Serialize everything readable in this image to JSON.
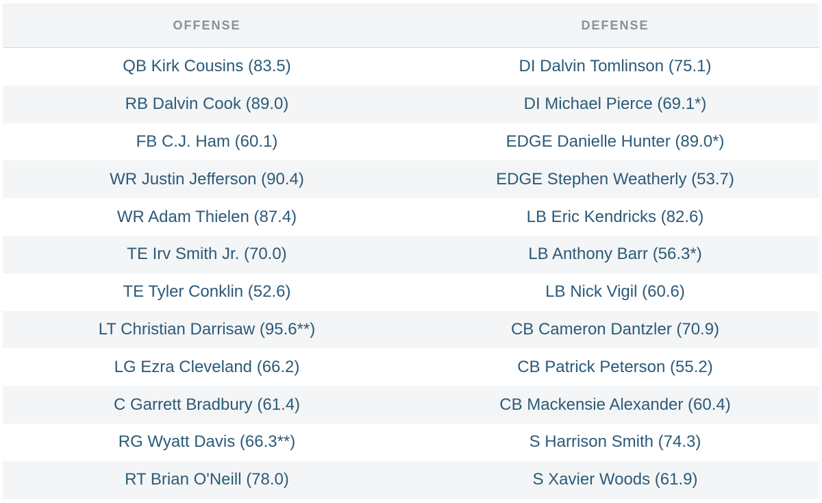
{
  "headers": {
    "offense": "OFFENSE",
    "defense": "DEFENSE"
  },
  "rows": [
    {
      "offense": "QB Kirk Cousins (83.5)",
      "defense": "DI Dalvin Tomlinson (75.1)"
    },
    {
      "offense": "RB Dalvin Cook (89.0)",
      "defense": "DI Michael Pierce (69.1*)"
    },
    {
      "offense": "FB C.J. Ham (60.1)",
      "defense": "EDGE Danielle Hunter (89.0*)"
    },
    {
      "offense": "WR Justin Jefferson (90.4)",
      "defense": "EDGE Stephen Weatherly (53.7)"
    },
    {
      "offense": "WR Adam Thielen (87.4)",
      "defense": "LB Eric Kendricks (82.6)"
    },
    {
      "offense": "TE Irv Smith Jr. (70.0)",
      "defense": "LB Anthony Barr (56.3*)"
    },
    {
      "offense": "TE Tyler Conklin (52.6)",
      "defense": "LB Nick Vigil (60.6)"
    },
    {
      "offense": "LT Christian Darrisaw (95.6**)",
      "defense": "CB Cameron Dantzler (70.9)"
    },
    {
      "offense": "LG Ezra Cleveland (66.2)",
      "defense": "CB Patrick Peterson (55.2)"
    },
    {
      "offense": "C Garrett Bradbury (61.4)",
      "defense": "CB Mackensie Alexander (60.4)"
    },
    {
      "offense": "RG Wyatt Davis (66.3**)",
      "defense": "S Harrison Smith (74.3)"
    },
    {
      "offense": "RT Brian O'Neill (78.0)",
      "defense": "S Xavier Woods (61.9)"
    }
  ]
}
